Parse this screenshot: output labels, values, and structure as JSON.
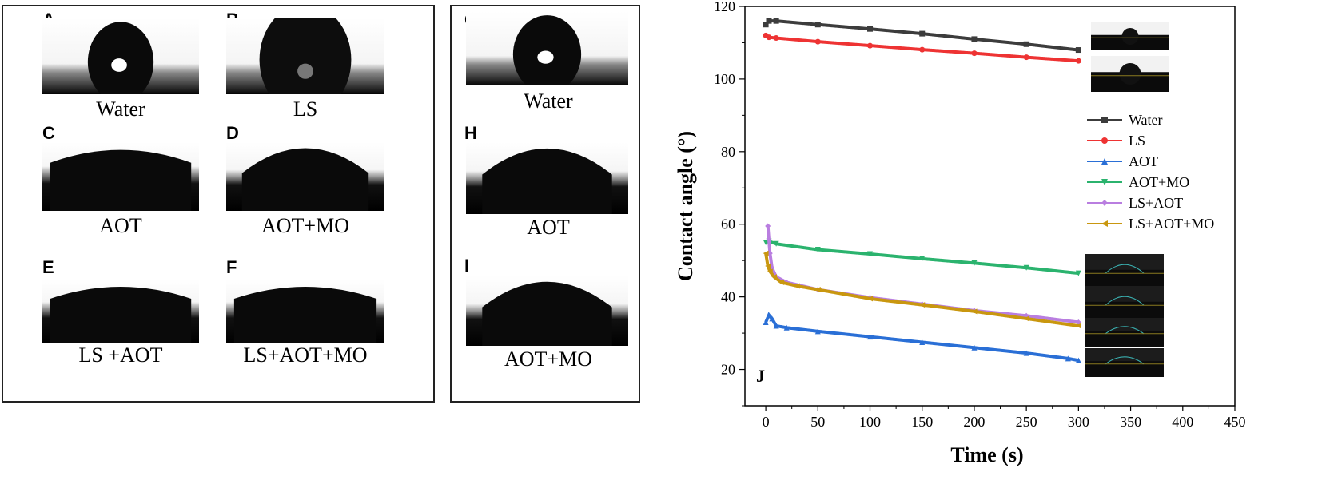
{
  "panels_left": [
    {
      "letter": "A",
      "caption": "Water"
    },
    {
      "letter": "B",
      "caption": "LS"
    },
    {
      "letter": "C",
      "caption": "AOT"
    },
    {
      "letter": "D",
      "caption": "AOT+MO"
    },
    {
      "letter": "E",
      "caption": "LS +AOT"
    },
    {
      "letter": "F",
      "caption": "LS+AOT+MO"
    }
  ],
  "panels_mid": [
    {
      "letter": "G",
      "caption": "Water"
    },
    {
      "letter": "H",
      "caption": "AOT"
    },
    {
      "letter": "I",
      "caption": "AOT+MO"
    }
  ],
  "chart_data": {
    "type": "line",
    "panel_letter": "J",
    "xlabel": "Time (s)",
    "ylabel": "Contact angle (°)",
    "xlim": [
      -20,
      450
    ],
    "ylim": [
      10,
      120
    ],
    "xticks": [
      0,
      50,
      100,
      150,
      200,
      250,
      300,
      350,
      400,
      450
    ],
    "yticks": [
      20,
      40,
      60,
      80,
      100,
      120
    ],
    "legend_position": "right",
    "series": [
      {
        "name": "Water",
        "color": "#3c3c3c",
        "marker": "square",
        "x": [
          0,
          3,
          10,
          50,
          100,
          150,
          200,
          250,
          300
        ],
        "y": [
          115,
          116,
          116,
          115,
          113.8,
          112.5,
          111,
          109.6,
          108
        ]
      },
      {
        "name": "LS",
        "color": "#ee3333",
        "marker": "circle",
        "x": [
          0,
          3,
          10,
          50,
          100,
          150,
          200,
          250,
          300
        ],
        "y": [
          112,
          111.5,
          111.3,
          110.3,
          109.2,
          108.1,
          107.1,
          106,
          105
        ]
      },
      {
        "name": "AOT",
        "color": "#2a6fd6",
        "marker": "triangle-up",
        "x": [
          0,
          3,
          6,
          10,
          20,
          50,
          100,
          150,
          200,
          250,
          290,
          300
        ],
        "y": [
          33,
          35,
          34,
          32,
          31.5,
          30.5,
          29,
          27.5,
          26,
          24.5,
          23,
          22.5
        ]
      },
      {
        "name": "AOT+MO",
        "color": "#2bb36e",
        "marker": "triangle-down",
        "x": [
          0,
          3,
          10,
          50,
          100,
          150,
          200,
          250,
          300
        ],
        "y": [
          55,
          55.3,
          54.6,
          53,
          51.8,
          50.5,
          49.3,
          48,
          46.5
        ]
      },
      {
        "name": "LS+AOT",
        "color": "#b97ee0",
        "marker": "diamond",
        "x": [
          2,
          4,
          6,
          10,
          20,
          50,
          100,
          150,
          200,
          250,
          300
        ],
        "y": [
          59.5,
          52,
          48,
          45.5,
          44,
          42,
          39.8,
          38,
          36.2,
          34.8,
          33
        ]
      },
      {
        "name": "LS+AOT+MO",
        "color": "#c9970f",
        "marker": "triangle-left",
        "x": [
          0,
          2,
          4,
          8,
          15,
          30,
          50,
          100,
          150,
          200,
          250,
          300
        ],
        "y": [
          52,
          48.5,
          47,
          45.5,
          44,
          43,
          42,
          39.5,
          37.8,
          36,
          34,
          32
        ]
      }
    ]
  }
}
